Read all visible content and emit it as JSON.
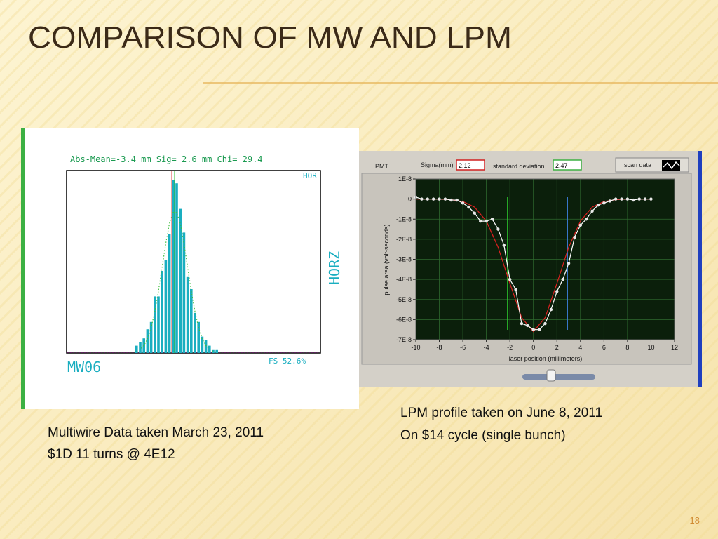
{
  "title": "COMPARISON OF MW AND LPM",
  "page_number": "18",
  "captions": {
    "left": [
      "Multiwire Data taken March 23, 2011",
      "$1D 11 turns @ 4E12"
    ],
    "right": [
      "LPM profile  taken on June 8, 2011",
      "On $14 cycle (single bunch)"
    ]
  },
  "chart_data": [
    {
      "type": "bar",
      "header": "Abs-Mean=-3.4   mm Sig= 2.6   mm Chi= 29.4",
      "corner_label": "HOR",
      "side_label": "HORZ",
      "device_label": "MW06",
      "scale_label": "FS  52.6%",
      "color": "#1aaec0",
      "fit_color": "#3fbf3f",
      "ylim": [
        0,
        100
      ],
      "values": [
        4,
        6,
        8,
        13,
        17,
        31,
        31,
        45,
        51,
        65,
        95,
        93,
        79,
        66,
        42,
        35,
        22,
        17,
        9,
        7,
        4,
        2,
        2
      ],
      "fit": [
        0.9,
        2.0,
        4.1,
        7.8,
        13.9,
        22.8,
        34,
        47,
        60,
        71,
        77,
        77,
        71,
        60,
        47,
        34,
        22.8,
        13.9,
        7.8,
        4.1,
        2.0,
        0.9,
        0.4
      ]
    },
    {
      "type": "line",
      "panel_label": "PMT",
      "sigma_label": "Sigma(mm)",
      "sigma_value": "2.12",
      "std_label": "standard deviation",
      "std_value": "2.47",
      "button_label": "scan data",
      "xlabel": "laser position (millimeters)",
      "ylabel": "pulse area (volt-seconds)",
      "xlim": [
        -10,
        12
      ],
      "ylim": [
        -7e-08,
        1e-08
      ],
      "xticks": [
        -10,
        -8,
        -6,
        -4,
        -2,
        0,
        2,
        4,
        6,
        8,
        10,
        12
      ],
      "yticks": [
        {
          "value": 1e-08,
          "label": "1E-8"
        },
        0,
        {
          "value": -1e-08,
          "label": "-1E-8"
        },
        {
          "value": -2e-08,
          "label": "-2E-8"
        },
        {
          "value": -3e-08,
          "label": "-3E-8"
        },
        {
          "value": -4e-08,
          "label": "-4E-8"
        },
        {
          "value": -5e-08,
          "label": "-5E-8"
        },
        {
          "value": -6e-08,
          "label": "-6E-8"
        },
        {
          "value": -7e-08,
          "label": "-7E-8"
        }
      ],
      "grid": true,
      "cursors": [
        {
          "value": -2.2,
          "color": "#2fd02f"
        },
        {
          "value": 2.9,
          "color": "#3a7ad0"
        }
      ],
      "series": [
        {
          "color": "#ffffff",
          "x": [
            -10,
            -9.5,
            -9,
            -8.5,
            -8,
            -7.5,
            -7,
            -6.5,
            -6,
            -5.5,
            -5,
            -4.5,
            -4,
            -3.5,
            -3,
            -2.5,
            -2,
            -1.5,
            -1,
            -0.5,
            0,
            0.5,
            1,
            1.5,
            2,
            2.5,
            3,
            3.5,
            4,
            4.5,
            5,
            5.5,
            6,
            6.5,
            7,
            7.5,
            8,
            8.5,
            9,
            9.5,
            10
          ],
          "values": [
            1e-09,
            0,
            0,
            0,
            0,
            0,
            -5e-10,
            -5e-10,
            -2e-09,
            -4e-09,
            -7e-09,
            -1.1e-08,
            -1.1e-08,
            -1e-08,
            -1.5e-08,
            -2.3e-08,
            -4e-08,
            -4.5e-08,
            -6.2e-08,
            -6.3e-08,
            -6.5e-08,
            -6.5e-08,
            -6.2e-08,
            -5.5e-08,
            -4.6e-08,
            -4e-08,
            -3.2e-08,
            -1.9e-08,
            -1.3e-08,
            -1e-08,
            -6e-09,
            -3e-09,
            -2e-09,
            -1e-09,
            0,
            0,
            0,
            -5e-10,
            0,
            0,
            0
          ]
        },
        {
          "color": "#e02020",
          "x": [
            -10,
            -9,
            -8,
            -7,
            -6,
            -5,
            -4,
            -3,
            -2,
            -1,
            0,
            1,
            2,
            3,
            4,
            5,
            6,
            7,
            8,
            9,
            10
          ],
          "values": [
            0,
            0,
            0,
            -3e-10,
            -1.2e-09,
            -4e-09,
            -1.1e-08,
            -2.4e-08,
            -4.2e-08,
            -5.9e-08,
            -6.6e-08,
            -5.9e-08,
            -4.2e-08,
            -2.4e-08,
            -1.1e-08,
            -4e-09,
            -1.2e-09,
            -3e-10,
            0,
            0,
            0
          ]
        }
      ]
    }
  ]
}
